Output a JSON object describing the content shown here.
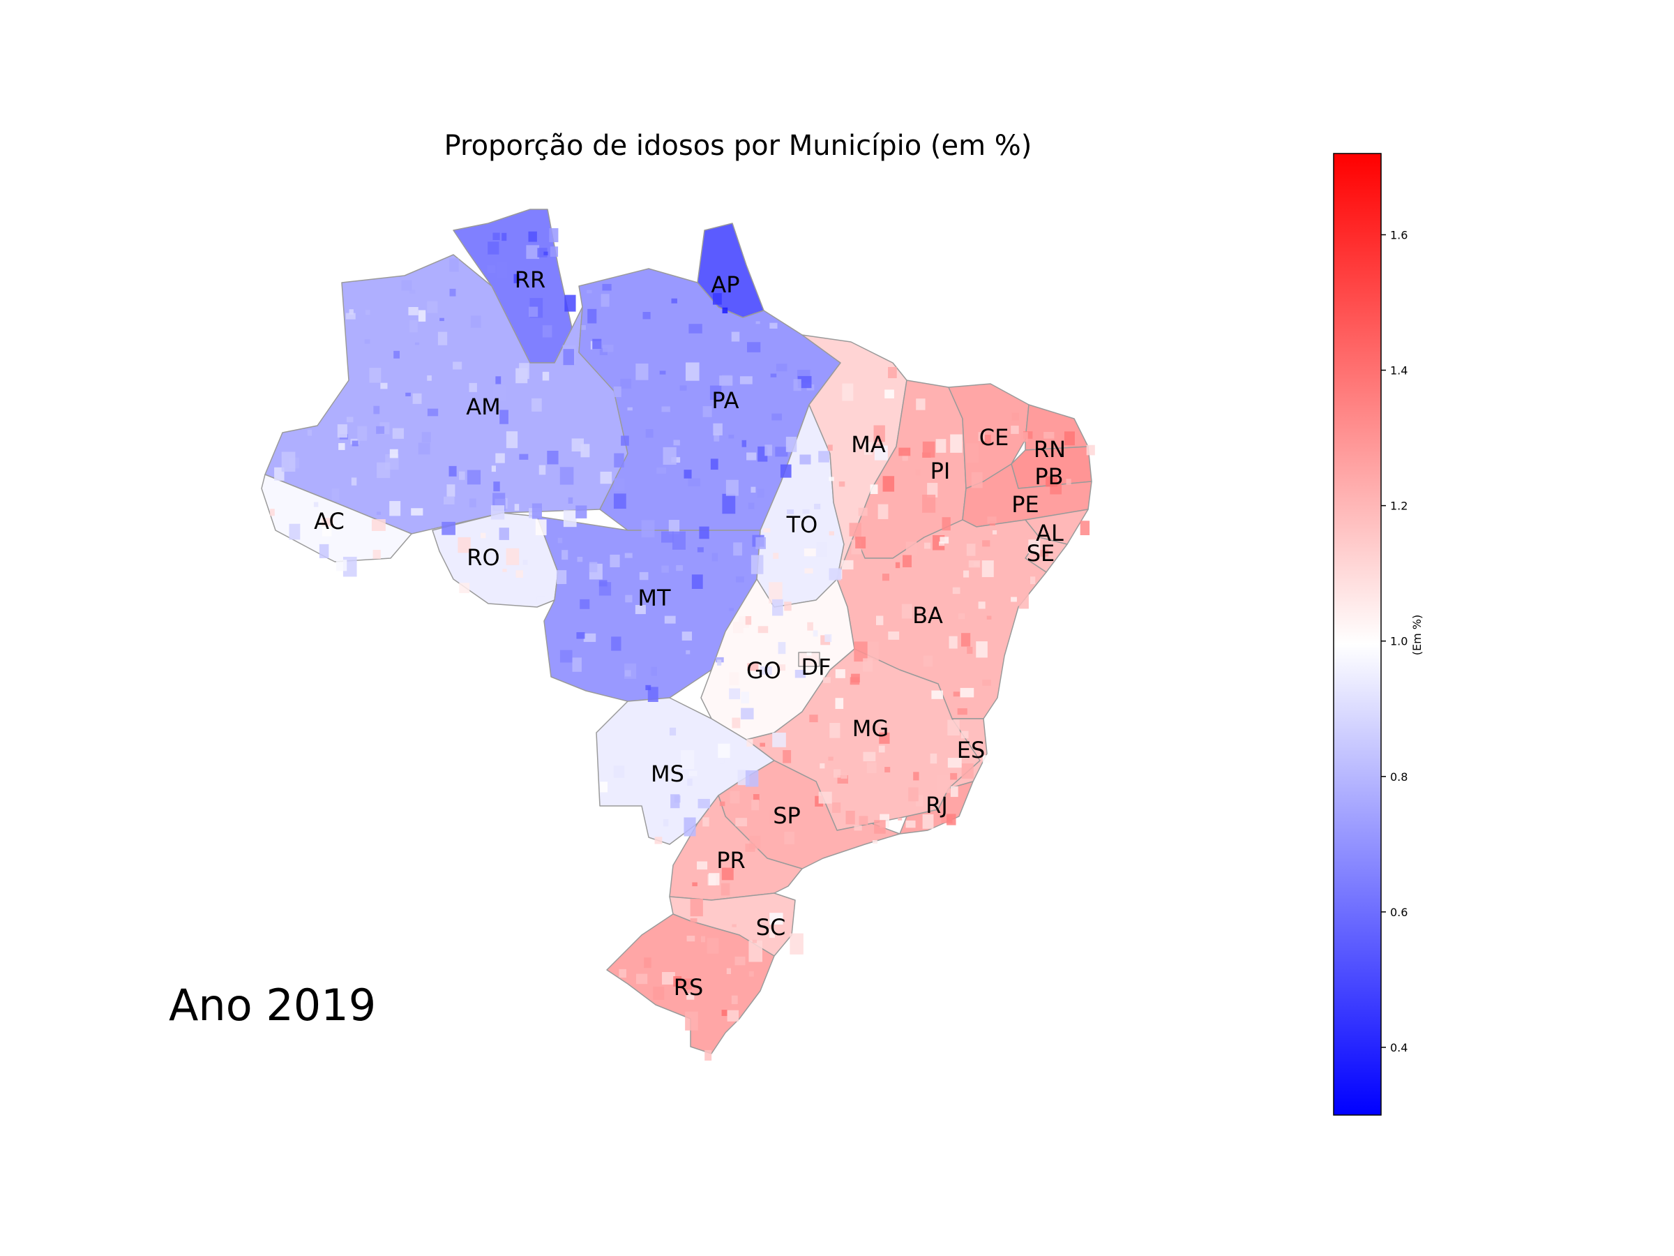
{
  "title": "Proporção de idosos por Município (em %)",
  "year_label": "Ano 2019",
  "map": {
    "states": [
      {
        "code": "RR",
        "tint": 0.65
      },
      {
        "code": "AP",
        "tint": 0.55
      },
      {
        "code": "AM",
        "tint": 0.78
      },
      {
        "code": "PA",
        "tint": 0.72
      },
      {
        "code": "AC",
        "tint": 0.98
      },
      {
        "code": "RO",
        "tint": 0.95
      },
      {
        "code": "MT",
        "tint": 0.72
      },
      {
        "code": "TO",
        "tint": 0.95
      },
      {
        "code": "MA",
        "tint": 1.12
      },
      {
        "code": "PI",
        "tint": 1.22
      },
      {
        "code": "CE",
        "tint": 1.25
      },
      {
        "code": "RN",
        "tint": 1.28
      },
      {
        "code": "PB",
        "tint": 1.3
      },
      {
        "code": "PE",
        "tint": 1.27
      },
      {
        "code": "AL",
        "tint": 1.2
      },
      {
        "code": "SE",
        "tint": 1.18
      },
      {
        "code": "BA",
        "tint": 1.2
      },
      {
        "code": "GO",
        "tint": 1.02
      },
      {
        "code": "DF",
        "tint": 1.05
      },
      {
        "code": "MG",
        "tint": 1.18
      },
      {
        "code": "ES",
        "tint": 1.18
      },
      {
        "code": "RJ",
        "tint": 1.25
      },
      {
        "code": "MS",
        "tint": 0.95
      },
      {
        "code": "SP",
        "tint": 1.22
      },
      {
        "code": "PR",
        "tint": 1.2
      },
      {
        "code": "SC",
        "tint": 1.15
      },
      {
        "code": "RS",
        "tint": 1.25
      }
    ]
  },
  "colorbar": {
    "label": "(Em %)",
    "min": 0.3,
    "max": 1.72,
    "ticks": [
      "0.4",
      "0.6",
      "0.8",
      "1.0",
      "1.2",
      "1.4",
      "1.6"
    ],
    "colors": {
      "low": "#0000ff",
      "mid": "#ffffff",
      "high": "#ff0000"
    }
  }
}
